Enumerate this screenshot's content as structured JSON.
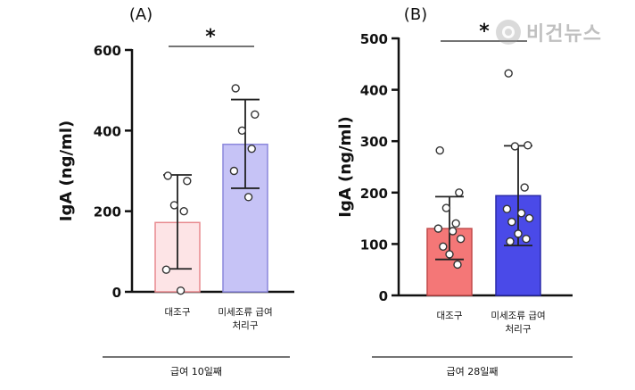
{
  "watermark": "비건뉴스",
  "chart_data": [
    {
      "type": "bar",
      "panel_label": "(A)",
      "ylabel": "IgA (ng/ml)",
      "ylim": [
        0,
        600
      ],
      "yticks": [
        0,
        200,
        400,
        600
      ],
      "categories": [
        [
          "대조구"
        ],
        [
          "미세조류 급여",
          "처리구"
        ]
      ],
      "values": [
        172,
        366
      ],
      "error_low": [
        57,
        257
      ],
      "error_high": [
        290,
        477
      ],
      "points": [
        [
          288,
          275,
          215,
          200,
          55,
          3
        ],
        [
          505,
          440,
          400,
          355,
          300,
          235
        ]
      ],
      "significance": "*",
      "group_label": "급여 10일째",
      "colors": {
        "fill": [
          "#fde4e6",
          "#c6c3f6"
        ],
        "stroke": [
          "#e88a8f",
          "#8b87dc"
        ]
      }
    },
    {
      "type": "bar",
      "panel_label": "(B)",
      "ylabel": "IgA (ng/ml)",
      "ylim": [
        0,
        500
      ],
      "yticks": [
        0,
        100,
        200,
        300,
        400,
        500
      ],
      "categories": [
        [
          "대조구"
        ],
        [
          "미세조류 급여",
          "처리구"
        ]
      ],
      "values": [
        130,
        194
      ],
      "error_low": [
        70,
        97
      ],
      "error_high": [
        192,
        291
      ],
      "points": [
        [
          282,
          200,
          170,
          140,
          130,
          125,
          110,
          95,
          80,
          60
        ],
        [
          432,
          292,
          290,
          210,
          168,
          160,
          150,
          143,
          120,
          110,
          105
        ]
      ],
      "significance": "*",
      "group_label": "급여 28일째",
      "colors": {
        "fill": [
          "#f47777",
          "#4a4ae8"
        ],
        "stroke": [
          "#c24a4a",
          "#2a2aa8"
        ]
      }
    }
  ]
}
